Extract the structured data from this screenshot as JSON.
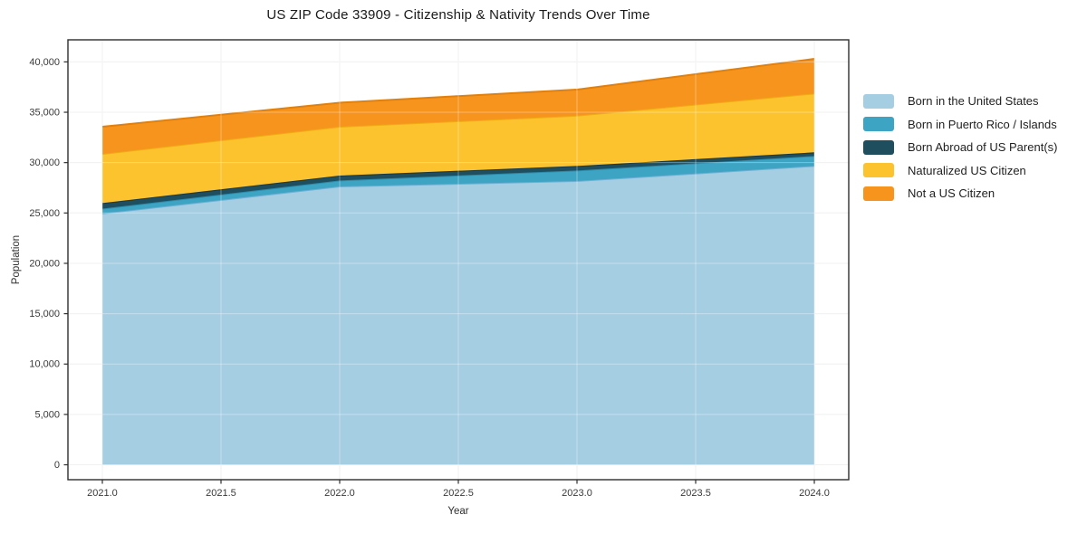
{
  "title": "US ZIP Code 33909 - Citizenship & Nativity Trends Over Time",
  "chart_data": {
    "type": "area",
    "stacked": true,
    "title": "US ZIP Code 33909 - Citizenship & Nativity Trends Over Time",
    "xlabel": "Year",
    "ylabel": "Population",
    "x": [
      2021,
      2022,
      2023,
      2024
    ],
    "series": [
      {
        "name": "Born in the United States",
        "values": [
          24950,
          27630,
          28170,
          29670
        ],
        "color": "#A6CEE3",
        "edge": "#74AFD3"
      },
      {
        "name": "Born in Puerto Rico / Islands",
        "values": [
          480,
          600,
          1050,
          990
        ],
        "color": "#3DA4C4",
        "edge": "#2B8DAD"
      },
      {
        "name": "Born Abroad of US Parent(s)",
        "values": [
          550,
          480,
          450,
          360
        ],
        "color": "#1F4E5F",
        "edge": "#16394A"
      },
      {
        "name": "Naturalized US Citizen",
        "values": [
          4880,
          4850,
          4990,
          5840
        ],
        "color": "#FDC32E",
        "edge": "#EDAE14"
      },
      {
        "name": "Not a US Citizen",
        "values": [
          2700,
          2390,
          2590,
          3440
        ],
        "color": "#F7941E",
        "edge": "#E2800D"
      }
    ],
    "stack_totals": [
      33560,
      35950,
      37250,
      40300
    ],
    "x_ticks": [
      2021.0,
      2021.5,
      2022.0,
      2022.5,
      2023.0,
      2023.5,
      2024.0
    ],
    "x_tick_labels": [
      "2021.0",
      "2021.5",
      "2022.0",
      "2022.5",
      "2023.0",
      "2023.5",
      "2024.0"
    ],
    "y_ticks": [
      0,
      5000,
      10000,
      15000,
      20000,
      25000,
      30000,
      35000,
      40000
    ],
    "y_tick_labels": [
      "0",
      "5,000",
      "10,000",
      "15,000",
      "20,000",
      "25,000",
      "30,000",
      "35,000",
      "40,000"
    ],
    "xlim": [
      2020.855,
      2024.145
    ],
    "ylim": [
      -1480,
      42190
    ],
    "grid": true,
    "legend_position": "right",
    "frame_color": "#2e2e2e",
    "grid_color": "#eaeaea",
    "tick_label_color": "#3a3a3a"
  }
}
